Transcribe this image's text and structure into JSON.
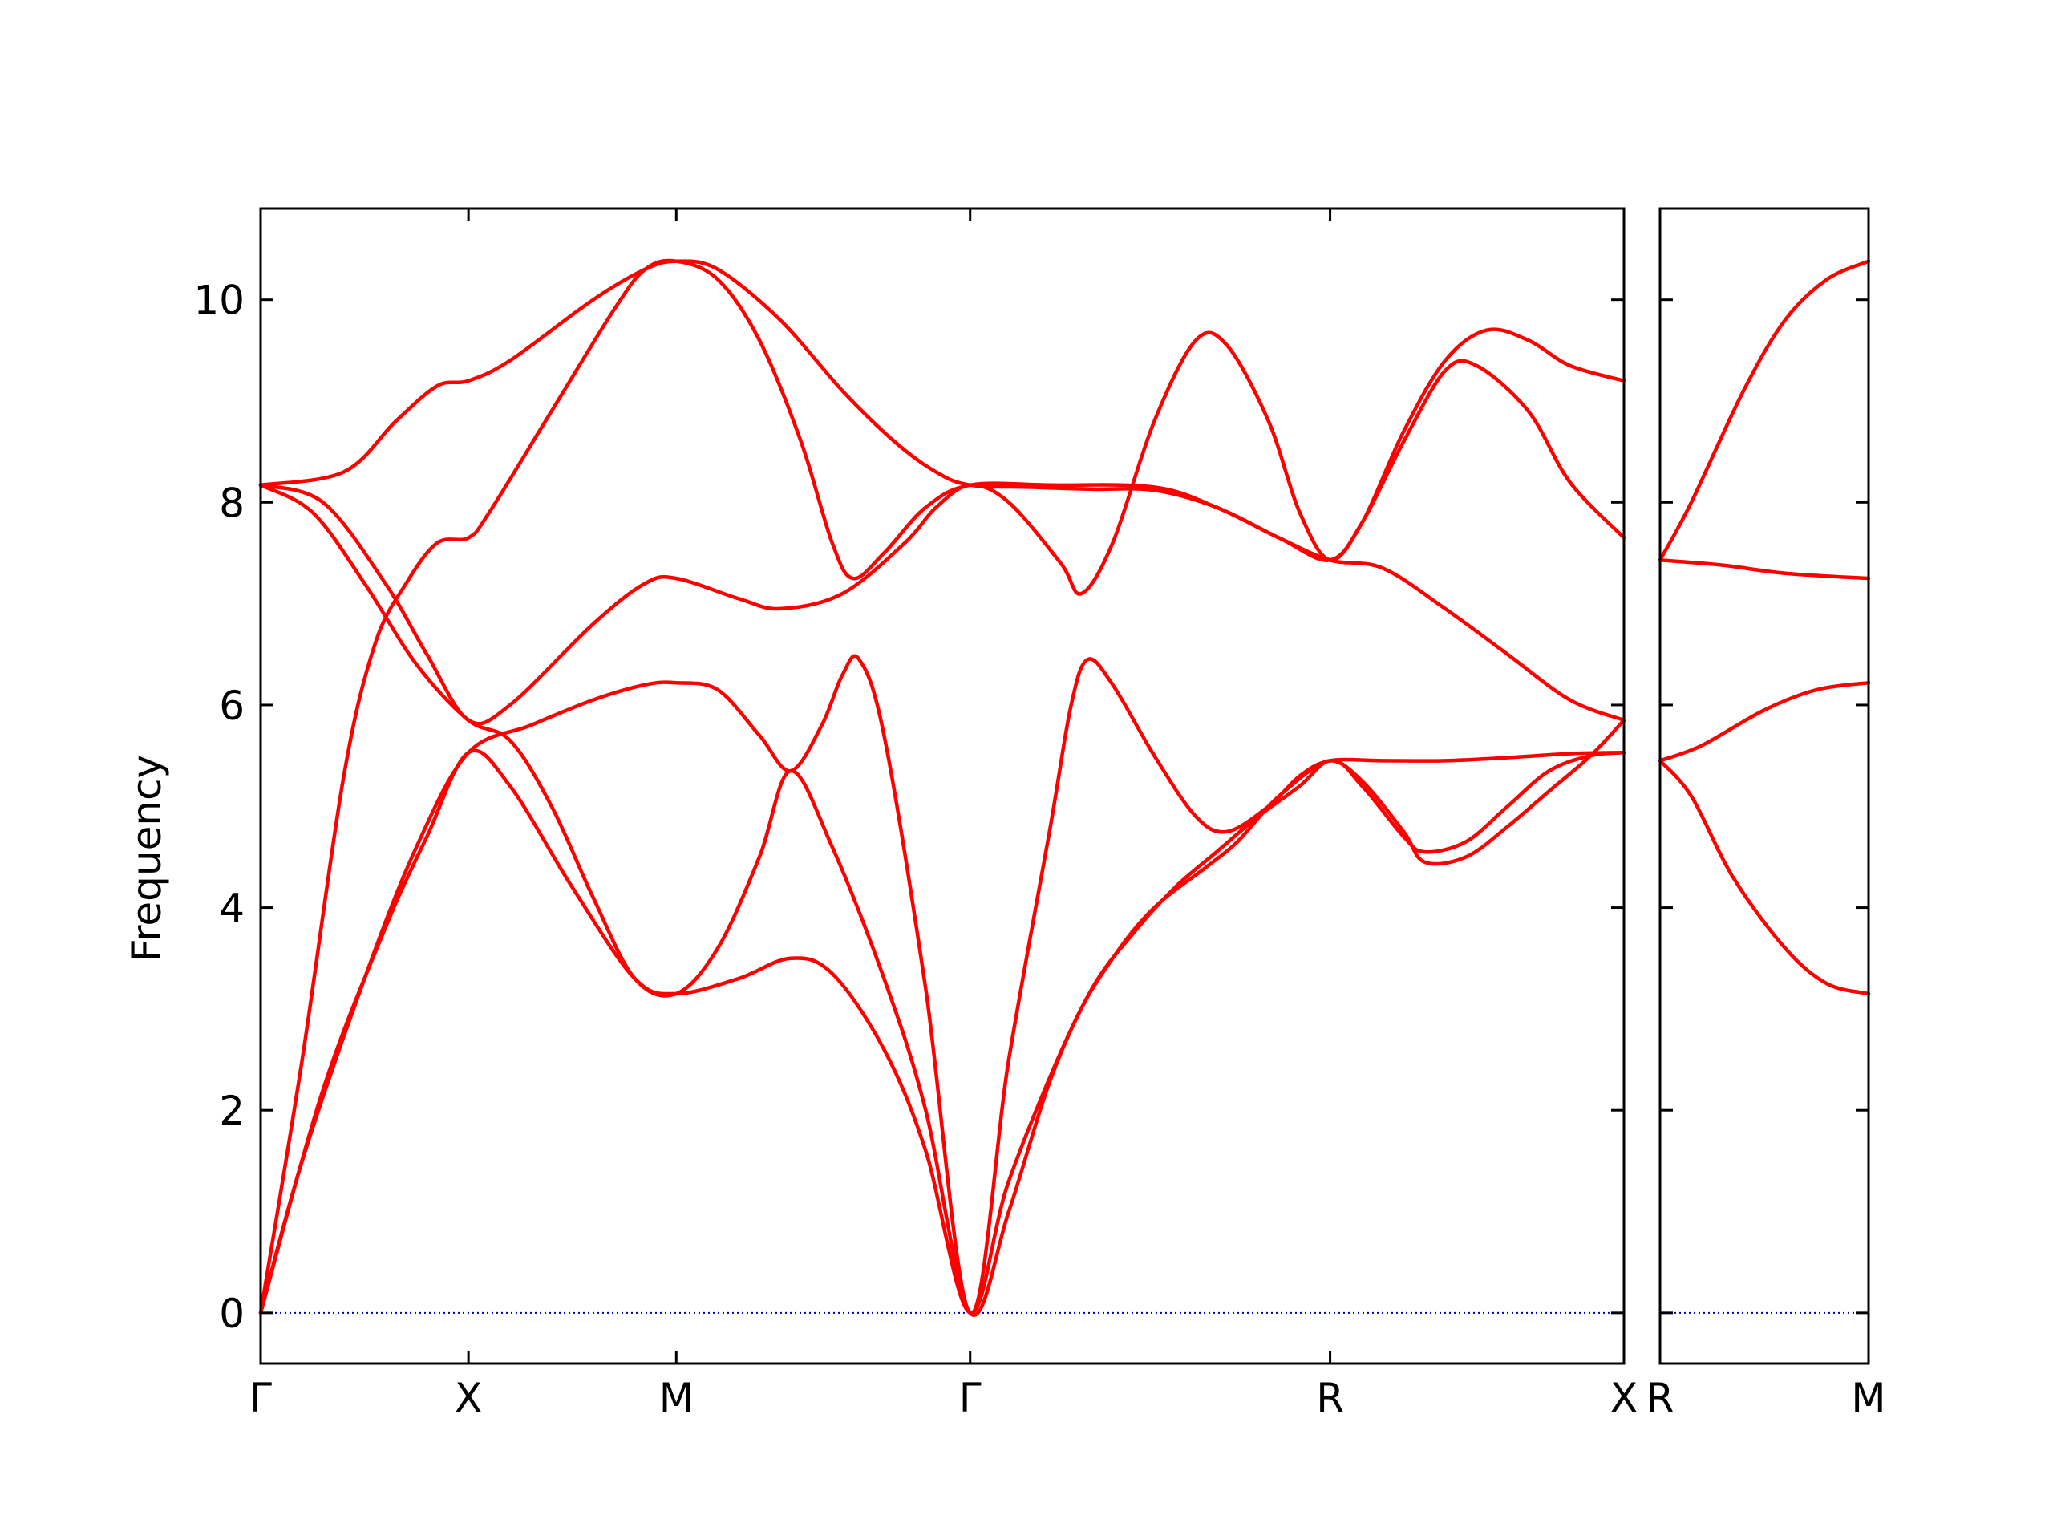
{
  "chart_data": {
    "type": "line",
    "ylabel": "Frequency",
    "ylim": [
      -0.5,
      10.9
    ],
    "yticks": [
      0,
      2,
      4,
      6,
      8,
      10
    ],
    "grid": false,
    "legend": "none",
    "line_color": "#ff0000",
    "zero_line_color": "#0000aa",
    "panels": [
      {
        "name": "main",
        "xticks": [
          {
            "label": "Γ",
            "pos": 0
          },
          {
            "label": "X",
            "pos": 1
          },
          {
            "label": "M",
            "pos": 2
          },
          {
            "label": "Γ",
            "pos": 3.414
          },
          {
            "label": "R",
            "pos": 5.146
          },
          {
            "label": "X",
            "pos": 6.56
          }
        ],
        "xlim": [
          0,
          6.56
        ],
        "series": [
          {
            "points": [
              [
                0,
                8.17
              ],
              [
                0.4,
                8.3
              ],
              [
                0.65,
                8.8
              ],
              [
                0.85,
                9.15
              ],
              [
                1,
                9.2
              ],
              [
                1.2,
                9.4
              ],
              [
                1.6,
                10.0
              ],
              [
                1.85,
                10.3
              ],
              [
                2,
                10.38
              ],
              [
                2.2,
                10.3
              ],
              [
                2.5,
                9.8
              ],
              [
                2.8,
                9.1
              ],
              [
                3.05,
                8.6
              ],
              [
                3.25,
                8.3
              ],
              [
                3.414,
                8.17
              ],
              [
                3.7,
                8.15
              ],
              [
                4.0,
                8.13
              ],
              [
                4.3,
                8.12
              ],
              [
                4.6,
                7.95
              ],
              [
                4.9,
                7.65
              ],
              [
                5.146,
                7.43
              ],
              [
                5.4,
                7.35
              ],
              [
                5.7,
                6.95
              ],
              [
                6.0,
                6.5
              ],
              [
                6.3,
                6.05
              ],
              [
                6.56,
                5.85
              ]
            ]
          },
          {
            "points": [
              [
                0,
                8.17
              ],
              [
                0.3,
                8.0
              ],
              [
                0.6,
                7.2
              ],
              [
                0.8,
                6.5
              ],
              [
                1,
                5.85
              ],
              [
                1.2,
                6.0
              ],
              [
                1.6,
                6.8
              ],
              [
                1.85,
                7.2
              ],
              [
                2,
                7.25
              ],
              [
                2.3,
                7.05
              ],
              [
                2.5,
                6.95
              ],
              [
                2.8,
                7.1
              ],
              [
                3.1,
                7.6
              ],
              [
                3.25,
                7.95
              ],
              [
                3.414,
                8.17
              ],
              [
                3.6,
                8.0
              ],
              [
                3.85,
                7.4
              ],
              [
                3.95,
                7.1
              ],
              [
                4.1,
                7.6
              ],
              [
                4.3,
                8.8
              ],
              [
                4.5,
                9.6
              ],
              [
                4.65,
                9.55
              ],
              [
                4.85,
                8.8
              ],
              [
                5.0,
                7.9
              ],
              [
                5.146,
                7.43
              ],
              [
                5.3,
                7.8
              ],
              [
                5.5,
                8.7
              ],
              [
                5.7,
                9.4
              ],
              [
                5.9,
                9.7
              ],
              [
                6.1,
                9.6
              ],
              [
                6.3,
                9.35
              ],
              [
                6.56,
                9.2
              ]
            ]
          },
          {
            "points": [
              [
                0,
                0
              ],
              [
                0.2,
                2.5
              ],
              [
                0.4,
                5.3
              ],
              [
                0.55,
                6.6
              ],
              [
                0.7,
                7.2
              ],
              [
                0.85,
                7.6
              ],
              [
                1,
                7.65
              ],
              [
                1.1,
                7.9
              ],
              [
                1.4,
                8.9
              ],
              [
                1.7,
                9.9
              ],
              [
                1.85,
                10.3
              ],
              [
                2,
                10.38
              ],
              [
                2.2,
                10.2
              ],
              [
                2.4,
                9.6
              ],
              [
                2.6,
                8.6
              ],
              [
                2.75,
                7.6
              ],
              [
                2.85,
                7.25
              ],
              [
                3.0,
                7.5
              ],
              [
                3.2,
                7.95
              ],
              [
                3.414,
                8.17
              ],
              [
                3.8,
                8.17
              ],
              [
                4.3,
                8.15
              ],
              [
                4.6,
                7.95
              ],
              [
                4.9,
                7.65
              ],
              [
                5.146,
                7.43
              ],
              [
                5.3,
                7.8
              ],
              [
                5.5,
                8.6
              ],
              [
                5.7,
                9.3
              ],
              [
                5.85,
                9.35
              ],
              [
                6.1,
                8.9
              ],
              [
                6.3,
                8.2
              ],
              [
                6.56,
                7.65
              ]
            ]
          },
          {
            "points": [
              [
                0,
                0
              ],
              [
                0.2,
                1.5
              ],
              [
                0.5,
                3.3
              ],
              [
                0.75,
                4.6
              ],
              [
                1,
                5.53
              ],
              [
                1.3,
                5.8
              ],
              [
                1.6,
                6.05
              ],
              [
                1.85,
                6.2
              ],
              [
                2,
                6.22
              ],
              [
                2.2,
                6.15
              ],
              [
                2.4,
                5.7
              ],
              [
                2.55,
                5.35
              ],
              [
                2.7,
                5.8
              ],
              [
                2.8,
                6.3
              ],
              [
                2.88,
                6.45
              ],
              [
                3.0,
                5.7
              ],
              [
                3.2,
                3.2
              ],
              [
                3.414,
                0
              ],
              [
                3.6,
                2.5
              ],
              [
                3.8,
                4.8
              ],
              [
                3.9,
                6.0
              ],
              [
                3.98,
                6.45
              ],
              [
                4.1,
                6.2
              ],
              [
                4.3,
                5.5
              ],
              [
                4.5,
                4.9
              ],
              [
                4.65,
                4.75
              ],
              [
                4.85,
                5.0
              ],
              [
                5.0,
                5.3
              ],
              [
                5.146,
                5.45
              ],
              [
                5.4,
                5.45
              ],
              [
                5.7,
                5.45
              ],
              [
                6.0,
                5.48
              ],
              [
                6.3,
                5.52
              ],
              [
                6.56,
                5.53
              ]
            ]
          },
          {
            "points": [
              [
                0,
                0
              ],
              [
                0.3,
                2.2
              ],
              [
                0.6,
                3.8
              ],
              [
                0.8,
                4.7
              ],
              [
                1,
                5.53
              ],
              [
                1.2,
                5.2
              ],
              [
                1.5,
                4.2
              ],
              [
                1.8,
                3.3
              ],
              [
                2,
                3.15
              ],
              [
                2.3,
                3.3
              ],
              [
                2.55,
                3.5
              ],
              [
                2.75,
                3.35
              ],
              [
                3.0,
                2.6
              ],
              [
                3.2,
                1.6
              ],
              [
                3.414,
                0
              ],
              [
                3.6,
                1.3
              ],
              [
                3.9,
                2.8
              ],
              [
                4.1,
                3.5
              ],
              [
                4.3,
                4.0
              ],
              [
                4.55,
                4.4
              ],
              [
                4.7,
                4.65
              ],
              [
                4.9,
                5.1
              ],
              [
                5.146,
                5.45
              ],
              [
                5.3,
                5.2
              ],
              [
                5.5,
                4.7
              ],
              [
                5.6,
                4.55
              ],
              [
                5.8,
                4.65
              ],
              [
                6.0,
                5.0
              ],
              [
                6.2,
                5.35
              ],
              [
                6.4,
                5.5
              ],
              [
                6.56,
                5.53
              ]
            ]
          },
          {
            "points": [
              [
                0,
                8.17
              ],
              [
                0.25,
                7.9
              ],
              [
                0.5,
                7.2
              ],
              [
                0.75,
                6.4
              ],
              [
                1,
                5.85
              ],
              [
                1.2,
                5.65
              ],
              [
                1.4,
                5.0
              ],
              [
                1.6,
                4.1
              ],
              [
                1.8,
                3.3
              ],
              [
                2,
                3.15
              ],
              [
                2.2,
                3.6
              ],
              [
                2.4,
                4.5
              ],
              [
                2.55,
                5.35
              ],
              [
                2.75,
                4.6
              ],
              [
                3.0,
                3.3
              ],
              [
                3.2,
                2.0
              ],
              [
                3.414,
                0
              ],
              [
                3.6,
                1.0
              ],
              [
                3.8,
                2.3
              ],
              [
                4.0,
                3.2
              ],
              [
                4.2,
                3.75
              ],
              [
                4.4,
                4.2
              ],
              [
                4.6,
                4.55
              ],
              [
                4.8,
                4.9
              ],
              [
                5.0,
                5.2
              ],
              [
                5.146,
                5.45
              ],
              [
                5.3,
                5.25
              ],
              [
                5.5,
                4.75
              ],
              [
                5.6,
                4.45
              ],
              [
                5.8,
                4.5
              ],
              [
                6.0,
                4.8
              ],
              [
                6.2,
                5.15
              ],
              [
                6.4,
                5.5
              ],
              [
                6.56,
                5.85
              ]
            ]
          }
        ]
      },
      {
        "name": "side",
        "xticks": [
          {
            "label": "R",
            "pos": 0
          },
          {
            "label": "M",
            "pos": 1
          }
        ],
        "xlim": [
          0,
          1
        ],
        "series": [
          {
            "points": [
              [
                0,
                7.43
              ],
              [
                0.15,
                8.0
              ],
              [
                0.4,
                9.1
              ],
              [
                0.6,
                9.8
              ],
              [
                0.8,
                10.2
              ],
              [
                1,
                10.38
              ]
            ]
          },
          {
            "points": [
              [
                0,
                7.43
              ],
              [
                0.3,
                7.38
              ],
              [
                0.6,
                7.3
              ],
              [
                1,
                7.25
              ]
            ]
          },
          {
            "points": [
              [
                0,
                5.45
              ],
              [
                0.2,
                5.6
              ],
              [
                0.5,
                5.95
              ],
              [
                0.75,
                6.15
              ],
              [
                1,
                6.22
              ]
            ]
          },
          {
            "points": [
              [
                0,
                5.45
              ],
              [
                0.15,
                5.1
              ],
              [
                0.35,
                4.3
              ],
              [
                0.6,
                3.6
              ],
              [
                0.8,
                3.25
              ],
              [
                1,
                3.15
              ]
            ]
          }
        ]
      }
    ]
  }
}
